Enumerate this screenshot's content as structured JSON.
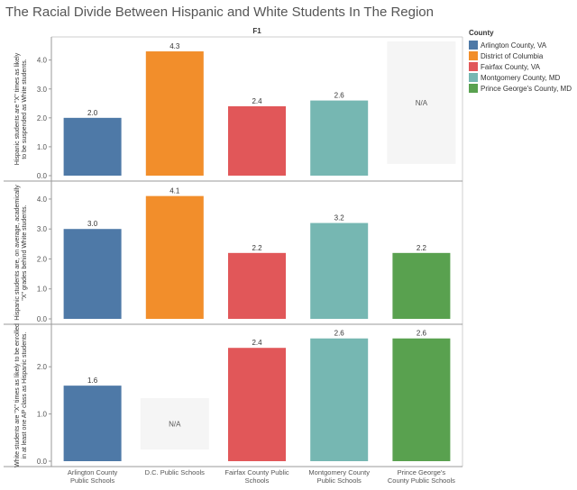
{
  "chart_data": {
    "type": "bar",
    "title": "The Racial Divide Between Hispanic and White Students In The Region",
    "column_header": "F1",
    "categories": [
      "Arlington County Public Schools",
      "D.C. Public Schools",
      "Fairfax County Public Schools",
      "Montgomery County Public Schools",
      "Prince George's County Public Schools"
    ],
    "colors": [
      "#4e79a7",
      "#f28e2b",
      "#e15759",
      "#76b7b2",
      "#59a14f"
    ],
    "legend": {
      "title": "County",
      "items": [
        {
          "label": "Arlington County, VA",
          "color": "#4e79a7"
        },
        {
          "label": "District of Columbia",
          "color": "#f28e2b"
        },
        {
          "label": "Fairfax County, VA",
          "color": "#e15759"
        },
        {
          "label": "Montgomery County, MD",
          "color": "#76b7b2"
        },
        {
          "label": "Prince George's County, MD",
          "color": "#59a14f"
        }
      ]
    },
    "na_label": "N/A",
    "panels": [
      {
        "ylabel": "Hispanic students are \"X\" times as likely to be suspended as White students.",
        "ylim": [
          0,
          4.8
        ],
        "ticks": [
          "0.0",
          "1.0",
          "2.0",
          "3.0",
          "4.0"
        ],
        "values": [
          2.0,
          4.3,
          2.4,
          2.6,
          null
        ],
        "labels": [
          "2.0",
          "4.3",
          "2.4",
          "2.6",
          null
        ]
      },
      {
        "ylabel": "Hispanic students are, on average, academically \"X\" grades behind White students.",
        "ylim": [
          0,
          4.6
        ],
        "ticks": [
          "0.0",
          "1.0",
          "2.0",
          "3.0",
          "4.0"
        ],
        "values": [
          3.0,
          4.1,
          2.2,
          3.2,
          2.2
        ],
        "labels": [
          "3.0",
          "4.1",
          "2.2",
          "3.2",
          "2.2"
        ]
      },
      {
        "ylabel": "White students are \"X\" times as likely to be enrolled in at least one AP class as Hispanic students.",
        "ylim": [
          0,
          2.9
        ],
        "ticks": [
          "0.0",
          "1.0",
          "2.0"
        ],
        "values": [
          1.6,
          null,
          2.4,
          2.6,
          2.6
        ],
        "labels": [
          "1.6",
          null,
          "2.4",
          "2.6",
          "2.6"
        ]
      }
    ]
  }
}
